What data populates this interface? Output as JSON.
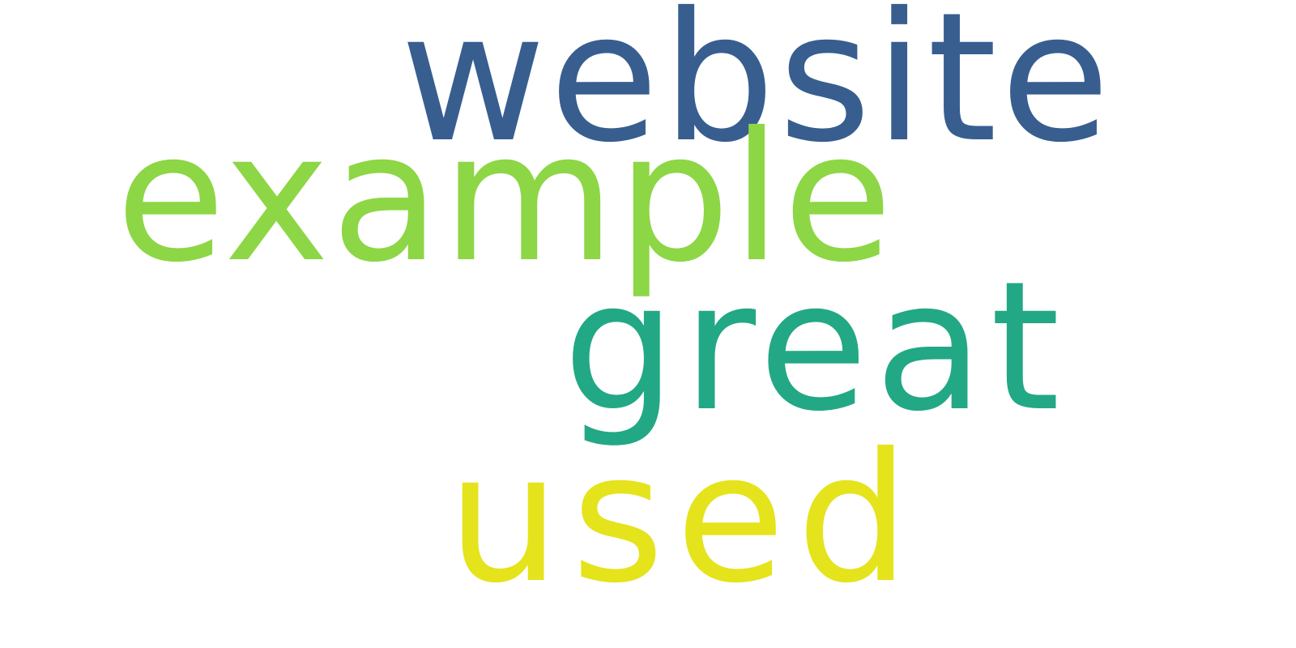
{
  "words": [
    {
      "text": "website",
      "color": "#375e8f"
    },
    {
      "text": "example",
      "color": "#8dd645"
    },
    {
      "text": "great",
      "color": "#22a884"
    },
    {
      "text": "used",
      "color": "#e5e31b"
    }
  ]
}
